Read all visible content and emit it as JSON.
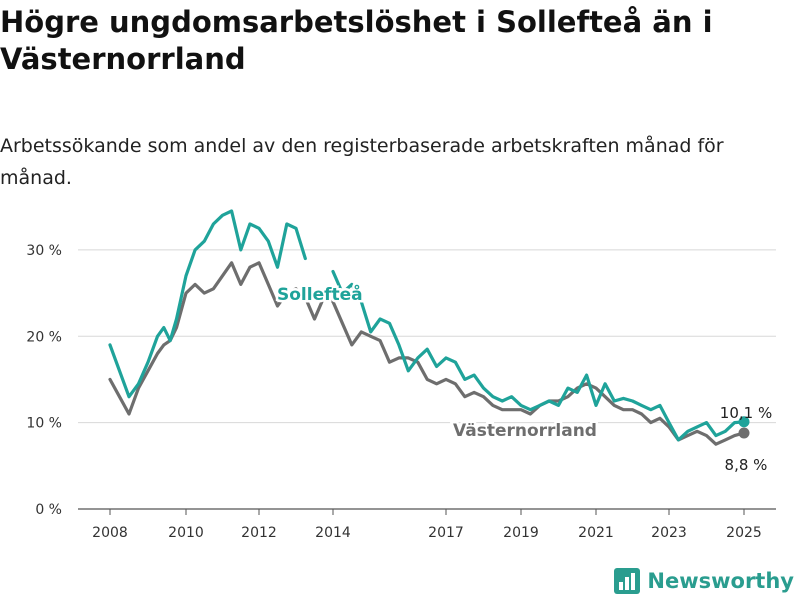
{
  "title": "Högre ungdomsarbetslöshet i Sollefteå än i Västernorrland",
  "subtitle": "Arbetssökande som andel av den registerbaserade arbetskraften månad för månad.",
  "brand": {
    "name": "Newsworthy",
    "color": "#2a9d8f"
  },
  "chart_data": {
    "type": "line",
    "x_ticks": [
      "2008",
      "2010",
      "2012",
      "2014",
      "2017",
      "2019",
      "2021",
      "2023",
      "2025"
    ],
    "y_ticks": [
      0,
      10,
      20,
      30
    ],
    "y_tick_labels": [
      "0 %",
      "10 %",
      "20 %",
      "30 %"
    ],
    "ylim": [
      0,
      35
    ],
    "grid": true,
    "series": [
      {
        "name": "Sollefteå",
        "color": "#1fa39a",
        "end_label": "10,1 %",
        "points": [
          [
            "2008-01",
            19.0
          ],
          [
            "2008-04",
            16.0
          ],
          [
            "2008-07",
            13.0
          ],
          [
            "2008-10",
            14.5
          ],
          [
            "2009-01",
            17.0
          ],
          [
            "2009-04",
            20.0
          ],
          [
            "2009-06",
            21.0
          ],
          [
            "2009-08",
            19.5
          ],
          [
            "2009-10",
            22.0
          ],
          [
            "2010-01",
            27.0
          ],
          [
            "2010-04",
            30.0
          ],
          [
            "2010-07",
            31.0
          ],
          [
            "2010-10",
            33.0
          ],
          [
            "2011-01",
            34.0
          ],
          [
            "2011-04",
            34.5
          ],
          [
            "2011-07",
            30.0
          ],
          [
            "2011-10",
            33.0
          ],
          [
            "2012-01",
            32.5
          ],
          [
            "2012-04",
            31.0
          ],
          [
            "2012-07",
            28.0
          ],
          [
            "2012-10",
            33.0
          ],
          [
            "2013-01",
            32.5
          ],
          [
            "2013-04",
            29.0
          ]
        ],
        "points_2": [
          [
            "2014-01",
            27.5
          ],
          [
            "2014-04",
            25.0
          ],
          [
            "2014-07",
            26.0
          ],
          [
            "2014-10",
            24.0
          ],
          [
            "2015-01",
            20.5
          ],
          [
            "2015-04",
            22.0
          ],
          [
            "2015-07",
            21.5
          ],
          [
            "2015-10",
            19.0
          ],
          [
            "2016-01",
            16.0
          ],
          [
            "2016-04",
            17.5
          ],
          [
            "2016-07",
            18.5
          ],
          [
            "2016-10",
            16.5
          ],
          [
            "2017-01",
            17.5
          ],
          [
            "2017-04",
            17.0
          ],
          [
            "2017-07",
            15.0
          ],
          [
            "2017-10",
            15.5
          ],
          [
            "2018-01",
            14.0
          ],
          [
            "2018-04",
            13.0
          ],
          [
            "2018-07",
            12.5
          ],
          [
            "2018-10",
            13.0
          ],
          [
            "2019-01",
            12.0
          ],
          [
            "2019-04",
            11.5
          ],
          [
            "2019-07",
            12.0
          ],
          [
            "2019-10",
            12.5
          ],
          [
            "2020-01",
            12.0
          ],
          [
            "2020-04",
            14.0
          ],
          [
            "2020-07",
            13.5
          ],
          [
            "2020-10",
            15.5
          ],
          [
            "2021-01",
            12.0
          ],
          [
            "2021-04",
            14.5
          ],
          [
            "2021-07",
            12.5
          ],
          [
            "2021-10",
            12.8
          ],
          [
            "2022-01",
            12.5
          ],
          [
            "2022-04",
            12.0
          ],
          [
            "2022-07",
            11.5
          ],
          [
            "2022-10",
            12.0
          ],
          [
            "2023-01",
            10.0
          ],
          [
            "2023-04",
            8.0
          ],
          [
            "2023-07",
            9.0
          ],
          [
            "2023-10",
            9.5
          ],
          [
            "2024-01",
            10.0
          ],
          [
            "2024-04",
            8.5
          ],
          [
            "2024-07",
            9.0
          ],
          [
            "2024-10",
            10.0
          ],
          [
            "2025-01",
            10.1
          ]
        ]
      },
      {
        "name": "Västernorrland",
        "color": "#6e6e6e",
        "end_label": "8,8 %",
        "points": [
          [
            "2008-01",
            15.0
          ],
          [
            "2008-04",
            13.0
          ],
          [
            "2008-07",
            11.0
          ],
          [
            "2008-10",
            14.0
          ],
          [
            "2009-01",
            16.0
          ],
          [
            "2009-04",
            18.0
          ],
          [
            "2009-06",
            19.0
          ],
          [
            "2009-08",
            19.5
          ],
          [
            "2009-10",
            21.0
          ],
          [
            "2010-01",
            25.0
          ],
          [
            "2010-04",
            26.0
          ],
          [
            "2010-07",
            25.0
          ],
          [
            "2010-10",
            25.5
          ],
          [
            "2011-01",
            27.0
          ],
          [
            "2011-04",
            28.5
          ],
          [
            "2011-07",
            26.0
          ],
          [
            "2011-10",
            28.0
          ],
          [
            "2012-01",
            28.5
          ],
          [
            "2012-04",
            26.0
          ],
          [
            "2012-07",
            23.5
          ],
          [
            "2012-10",
            25.0
          ],
          [
            "2013-01",
            25.5
          ],
          [
            "2013-04",
            24.5
          ],
          [
            "2013-07",
            22.0
          ],
          [
            "2013-10",
            24.5
          ],
          [
            "2014-01",
            24.0
          ],
          [
            "2014-04",
            21.5
          ],
          [
            "2014-07",
            19.0
          ],
          [
            "2014-10",
            20.5
          ],
          [
            "2015-01",
            20.0
          ],
          [
            "2015-04",
            19.5
          ],
          [
            "2015-07",
            17.0
          ],
          [
            "2015-10",
            17.5
          ],
          [
            "2016-01",
            17.5
          ],
          [
            "2016-04",
            17.0
          ],
          [
            "2016-07",
            15.0
          ],
          [
            "2016-10",
            14.5
          ],
          [
            "2017-01",
            15.0
          ],
          [
            "2017-04",
            14.5
          ],
          [
            "2017-07",
            13.0
          ],
          [
            "2017-10",
            13.5
          ],
          [
            "2018-01",
            13.0
          ],
          [
            "2018-04",
            12.0
          ],
          [
            "2018-07",
            11.5
          ],
          [
            "2018-10",
            11.5
          ],
          [
            "2019-01",
            11.5
          ],
          [
            "2019-04",
            11.0
          ],
          [
            "2019-07",
            12.0
          ],
          [
            "2019-10",
            12.5
          ],
          [
            "2020-01",
            12.5
          ],
          [
            "2020-04",
            13.0
          ],
          [
            "2020-07",
            14.0
          ],
          [
            "2020-10",
            14.5
          ],
          [
            "2021-01",
            14.0
          ],
          [
            "2021-04",
            13.0
          ],
          [
            "2021-07",
            12.0
          ],
          [
            "2021-10",
            11.5
          ],
          [
            "2022-01",
            11.5
          ],
          [
            "2022-04",
            11.0
          ],
          [
            "2022-07",
            10.0
          ],
          [
            "2022-10",
            10.5
          ],
          [
            "2023-01",
            9.5
          ],
          [
            "2023-04",
            8.0
          ],
          [
            "2023-07",
            8.5
          ],
          [
            "2023-10",
            9.0
          ],
          [
            "2024-01",
            8.5
          ],
          [
            "2024-04",
            7.5
          ],
          [
            "2024-07",
            8.0
          ],
          [
            "2024-10",
            8.5
          ],
          [
            "2025-01",
            8.8
          ]
        ]
      }
    ]
  }
}
